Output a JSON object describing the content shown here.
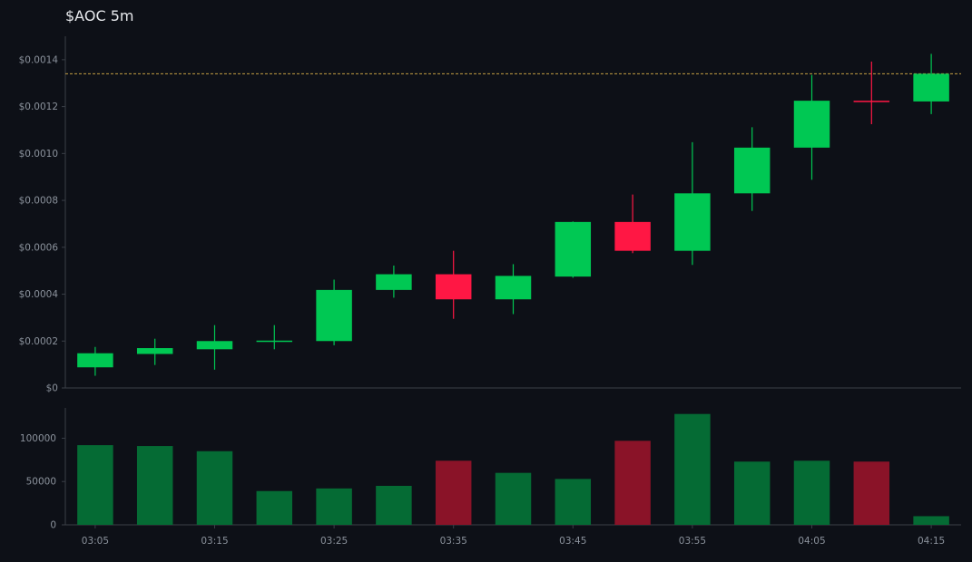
{
  "chart_data": [
    {
      "type": "candlestick",
      "title": "$AOC 5m",
      "x": [
        "03:05",
        "03:10",
        "03:15",
        "03:20",
        "03:25",
        "03:30",
        "03:35",
        "03:40",
        "03:45",
        "03:50",
        "03:55",
        "04:00",
        "04:05",
        "04:10",
        "04:15"
      ],
      "x_tick_labels": [
        "03:05",
        "03:15",
        "03:25",
        "03:35",
        "03:45",
        "03:55",
        "04:05",
        "04:15"
      ],
      "y_tick_labels": [
        "$0",
        "$0.0002",
        "$0.0004",
        "$0.0006",
        "$0.0008",
        "$0.0010",
        "$0.0012",
        "$0.0014"
      ],
      "ylim": [
        0,
        0.0015
      ],
      "candles": [
        {
          "time": "03:05",
          "open": 8.8e-05,
          "high": 0.000175,
          "low": 5.2e-05,
          "close": 0.000148
        },
        {
          "time": "03:10",
          "open": 0.000145,
          "high": 0.00021,
          "low": 9.8e-05,
          "close": 0.00017
        },
        {
          "time": "03:15",
          "open": 0.000165,
          "high": 0.000268,
          "low": 7.8e-05,
          "close": 0.0002
        },
        {
          "time": "03:20",
          "open": 0.000198,
          "high": 0.000268,
          "low": 0.000165,
          "close": 0.000202
        },
        {
          "time": "03:25",
          "open": 0.0002,
          "high": 0.000462,
          "low": 0.000182,
          "close": 0.000418
        },
        {
          "time": "03:30",
          "open": 0.000418,
          "high": 0.000522,
          "low": 0.000385,
          "close": 0.000485
        },
        {
          "time": "03:35",
          "open": 0.000485,
          "high": 0.000585,
          "low": 0.000295,
          "close": 0.000378
        },
        {
          "time": "03:40",
          "open": 0.000378,
          "high": 0.000528,
          "low": 0.000315,
          "close": 0.000478
        },
        {
          "time": "03:45",
          "open": 0.000475,
          "high": 0.00071,
          "low": 0.00047,
          "close": 0.000708
        },
        {
          "time": "03:50",
          "open": 0.000708,
          "high": 0.000825,
          "low": 0.000575,
          "close": 0.000585
        },
        {
          "time": "03:55",
          "open": 0.000585,
          "high": 0.001048,
          "low": 0.000525,
          "close": 0.00083
        },
        {
          "time": "04:00",
          "open": 0.00083,
          "high": 0.001112,
          "low": 0.000755,
          "close": 0.001025
        },
        {
          "time": "04:05",
          "open": 0.001025,
          "high": 0.001335,
          "low": 0.000888,
          "close": 0.001225
        },
        {
          "time": "04:10",
          "open": 0.001225,
          "high": 0.001392,
          "low": 0.001125,
          "close": 0.001222
        },
        {
          "time": "04:15",
          "open": 0.001222,
          "high": 0.001425,
          "low": 0.001168,
          "close": 0.00134
        }
      ],
      "reference_line": 0.00134,
      "colors": {
        "up": "#00c853",
        "down": "#ff1744",
        "reference": "#f2c14e"
      },
      "grid": false
    },
    {
      "type": "bar",
      "title": "",
      "categories": [
        "03:05",
        "03:10",
        "03:15",
        "03:20",
        "03:25",
        "03:30",
        "03:35",
        "03:40",
        "03:45",
        "03:50",
        "03:55",
        "04:00",
        "04:05",
        "04:10",
        "04:15"
      ],
      "values": [
        92000,
        91000,
        85000,
        39000,
        42000,
        45000,
        74000,
        60000,
        53000,
        97000,
        128000,
        73000,
        74000,
        73000,
        10000
      ],
      "direction": [
        "up",
        "up",
        "up",
        "up",
        "up",
        "up",
        "down",
        "up",
        "up",
        "down",
        "up",
        "up",
        "up",
        "down",
        "up"
      ],
      "y_tick_labels": [
        "0",
        "50000",
        "100000"
      ],
      "ylim": [
        0,
        135000
      ],
      "colors": {
        "up": "#056b34",
        "down": "#8a1328"
      },
      "grid": false
    }
  ]
}
